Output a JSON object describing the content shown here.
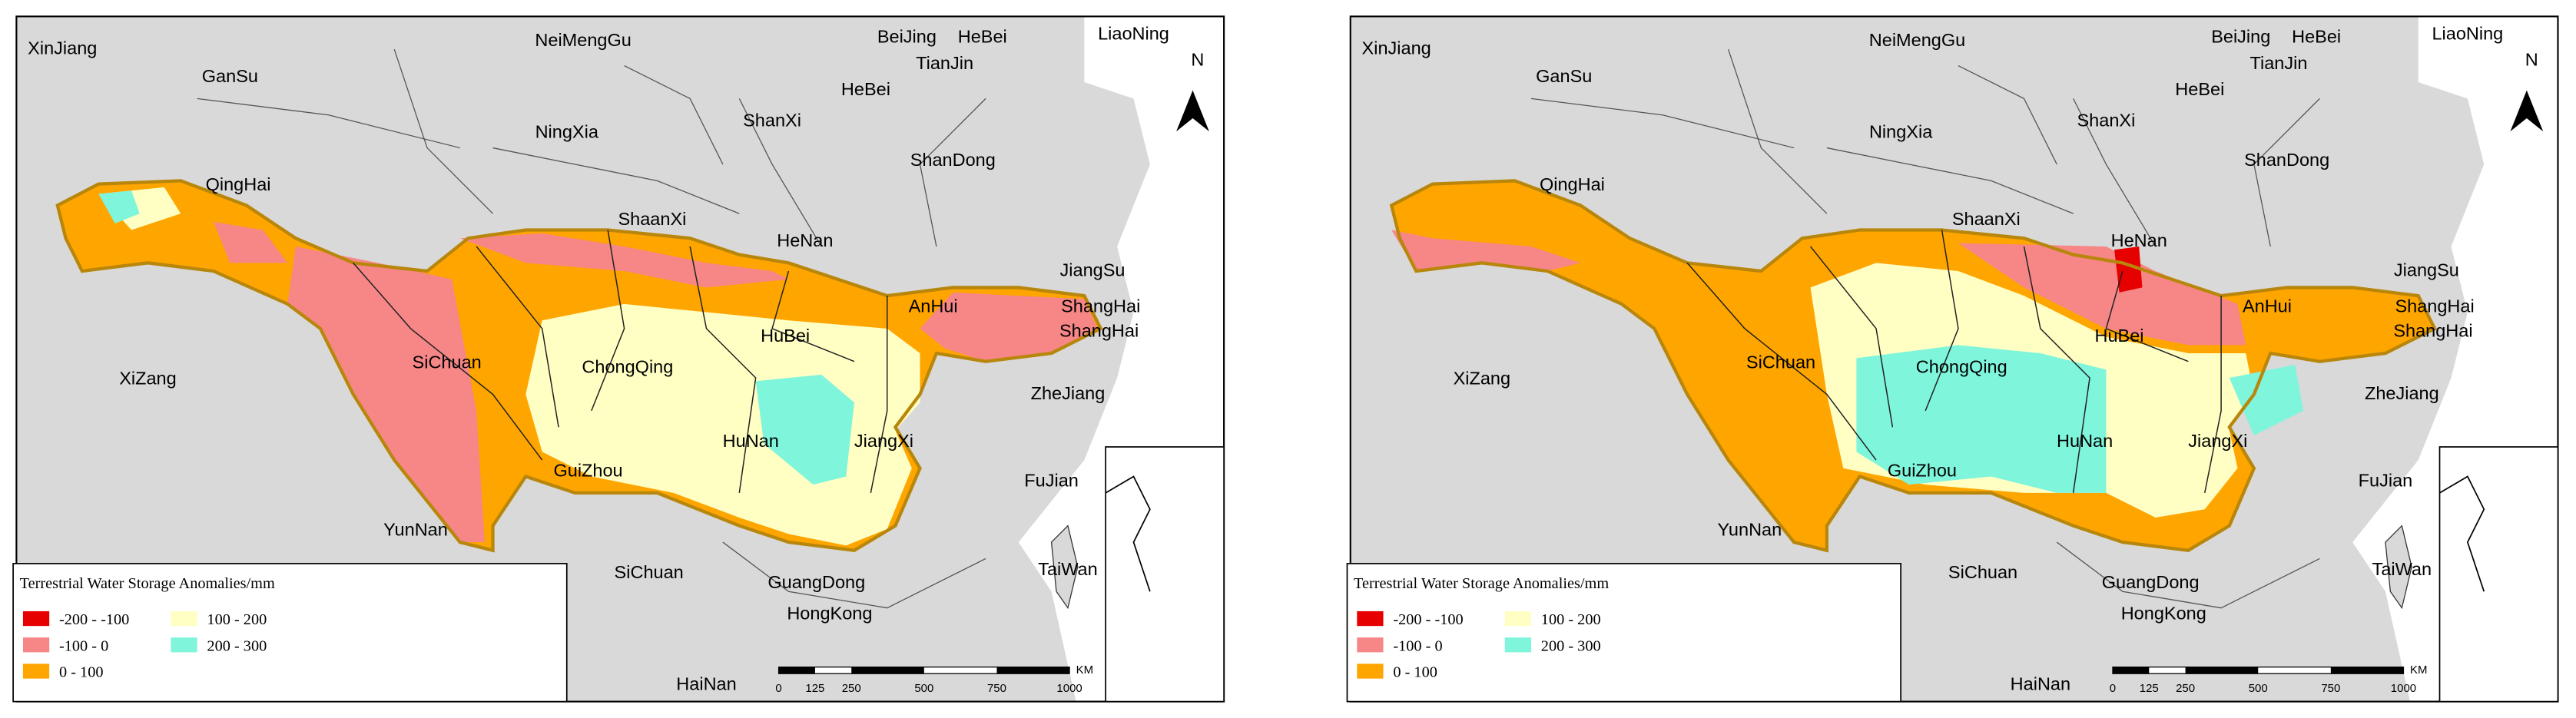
{
  "maps": [
    {
      "labels": [
        "XinJiang",
        "GanSu",
        "NeiMengGu",
        "BeiJing",
        "HeBei",
        "TianJin",
        "LiaoNing",
        "HeBei",
        "ShanXi",
        "NingXia",
        "QingHai",
        "ShanDong",
        "ShaanXi",
        "HeNan",
        "JiangSu",
        "AnHui",
        "ShangHai",
        "ShangHai",
        "SiChuan",
        "HuBei",
        "ChongQing",
        "XiZang",
        "ZheJiang",
        "HuNan",
        "JiangXi",
        "GuiZhou",
        "FuJian",
        "YunNan",
        "SiChuan",
        "GuangDong",
        "HongKong",
        "TaiWan",
        "HaiNan"
      ],
      "legend": {
        "title": "Terrestrial Water Storage Anomalies/mm",
        "items": [
          {
            "label": "-200 - -100",
            "color": "#e60000"
          },
          {
            "label": "-100 - 0",
            "color": "#f78686"
          },
          {
            "label": "0 - 100",
            "color": "#ffa500"
          },
          {
            "label": "100 - 200",
            "color": "#ffffc4"
          },
          {
            "label": "200 - 300",
            "color": "#7ff5dc"
          }
        ]
      },
      "scale": {
        "ticks": [
          0,
          125,
          250,
          500,
          750,
          1000
        ],
        "unit": "KM"
      },
      "north": "N"
    },
    {
      "labels": [
        "XinJiang",
        "GanSu",
        "NeiMengGu",
        "BeiJing",
        "HeBei",
        "TianJin",
        "LiaoNing",
        "HeBei",
        "ShanXi",
        "NingXia",
        "QingHai",
        "ShanDong",
        "ShaanXi",
        "HeNan",
        "JiangSu",
        "AnHui",
        "ShangHai",
        "ShangHai",
        "SiChuan",
        "HuBei",
        "ChongQing",
        "XiZang",
        "ZheJiang",
        "HuNan",
        "JiangXi",
        "GuiZhou",
        "FuJian",
        "YunNan",
        "SiChuan",
        "GuangDong",
        "HongKong",
        "TaiWan",
        "HaiNan"
      ],
      "legend": {
        "title": "Terrestrial Water Storage Anomalies/mm",
        "items": [
          {
            "label": "-200 - -100",
            "color": "#e60000"
          },
          {
            "label": "-100 - 0",
            "color": "#f78686"
          },
          {
            "label": "0 - 100",
            "color": "#ffa500"
          },
          {
            "label": "100 - 200",
            "color": "#ffffc4"
          },
          {
            "label": "200 - 300",
            "color": "#7ff5dc"
          }
        ]
      },
      "scale": {
        "ticks": [
          0,
          125,
          250,
          500,
          750,
          1000
        ],
        "unit": "KM"
      },
      "north": "N"
    }
  ]
}
